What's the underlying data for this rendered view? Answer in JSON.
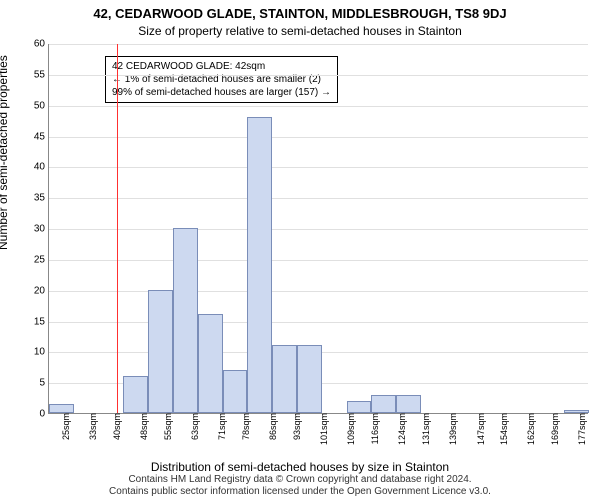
{
  "title": "42, CEDARWOOD GLADE, STAINTON, MIDDLESBROUGH, TS8 9DJ",
  "subtitle": "Size of property relative to semi-detached houses in Stainton",
  "ylabel": "Number of semi-detached properties",
  "xlabel": "Distribution of semi-detached houses by size in Stainton",
  "footer1": "Contains HM Land Registry data © Crown copyright and database right 2024.",
  "footer2": "Contains public sector information licensed under the Open Government Licence v3.0.",
  "annotation": {
    "line1": "42 CEDARWOOD GLADE: 42sqm",
    "line2": "← 1% of semi-detached houses are smaller (2)",
    "line3": "99% of semi-detached houses are larger (157) →"
  },
  "chart": {
    "type": "histogram",
    "background_color": "#ffffff",
    "grid_color": "#e0e0e0",
    "axis_color": "#888888",
    "bar_fill": "#cdd9f0",
    "bar_stroke": "#7a8db8",
    "reference_line_color": "#ff3030",
    "reference_value": 42,
    "x_min": 22,
    "x_max": 181,
    "bin_width": 7.3,
    "ylim": [
      0,
      60
    ],
    "ytick_step": 5,
    "xticks": [
      25,
      33,
      40,
      48,
      55,
      63,
      71,
      78,
      86,
      93,
      101,
      109,
      116,
      124,
      131,
      139,
      147,
      154,
      162,
      169,
      177
    ],
    "xtick_suffix": "sqm",
    "bins": [
      {
        "x": 22,
        "count": 1.5
      },
      {
        "x": 29.3,
        "count": 0
      },
      {
        "x": 36.6,
        "count": 0
      },
      {
        "x": 43.9,
        "count": 6
      },
      {
        "x": 51.2,
        "count": 20
      },
      {
        "x": 58.5,
        "count": 30
      },
      {
        "x": 65.8,
        "count": 16
      },
      {
        "x": 73.1,
        "count": 7
      },
      {
        "x": 80.4,
        "count": 48
      },
      {
        "x": 87.7,
        "count": 11
      },
      {
        "x": 95.0,
        "count": 11
      },
      {
        "x": 102.3,
        "count": 0
      },
      {
        "x": 109.6,
        "count": 2
      },
      {
        "x": 116.9,
        "count": 3
      },
      {
        "x": 124.2,
        "count": 3
      },
      {
        "x": 131.5,
        "count": 0
      },
      {
        "x": 138.8,
        "count": 0
      },
      {
        "x": 146.1,
        "count": 0
      },
      {
        "x": 153.4,
        "count": 0
      },
      {
        "x": 160.7,
        "count": 0
      },
      {
        "x": 168.0,
        "count": 0
      },
      {
        "x": 173.7,
        "count": 0.5
      }
    ],
    "title_fontsize": 13,
    "subtitle_fontsize": 12,
    "label_fontsize": 12,
    "tick_fontsize": 10,
    "annot_fontsize": 10
  }
}
